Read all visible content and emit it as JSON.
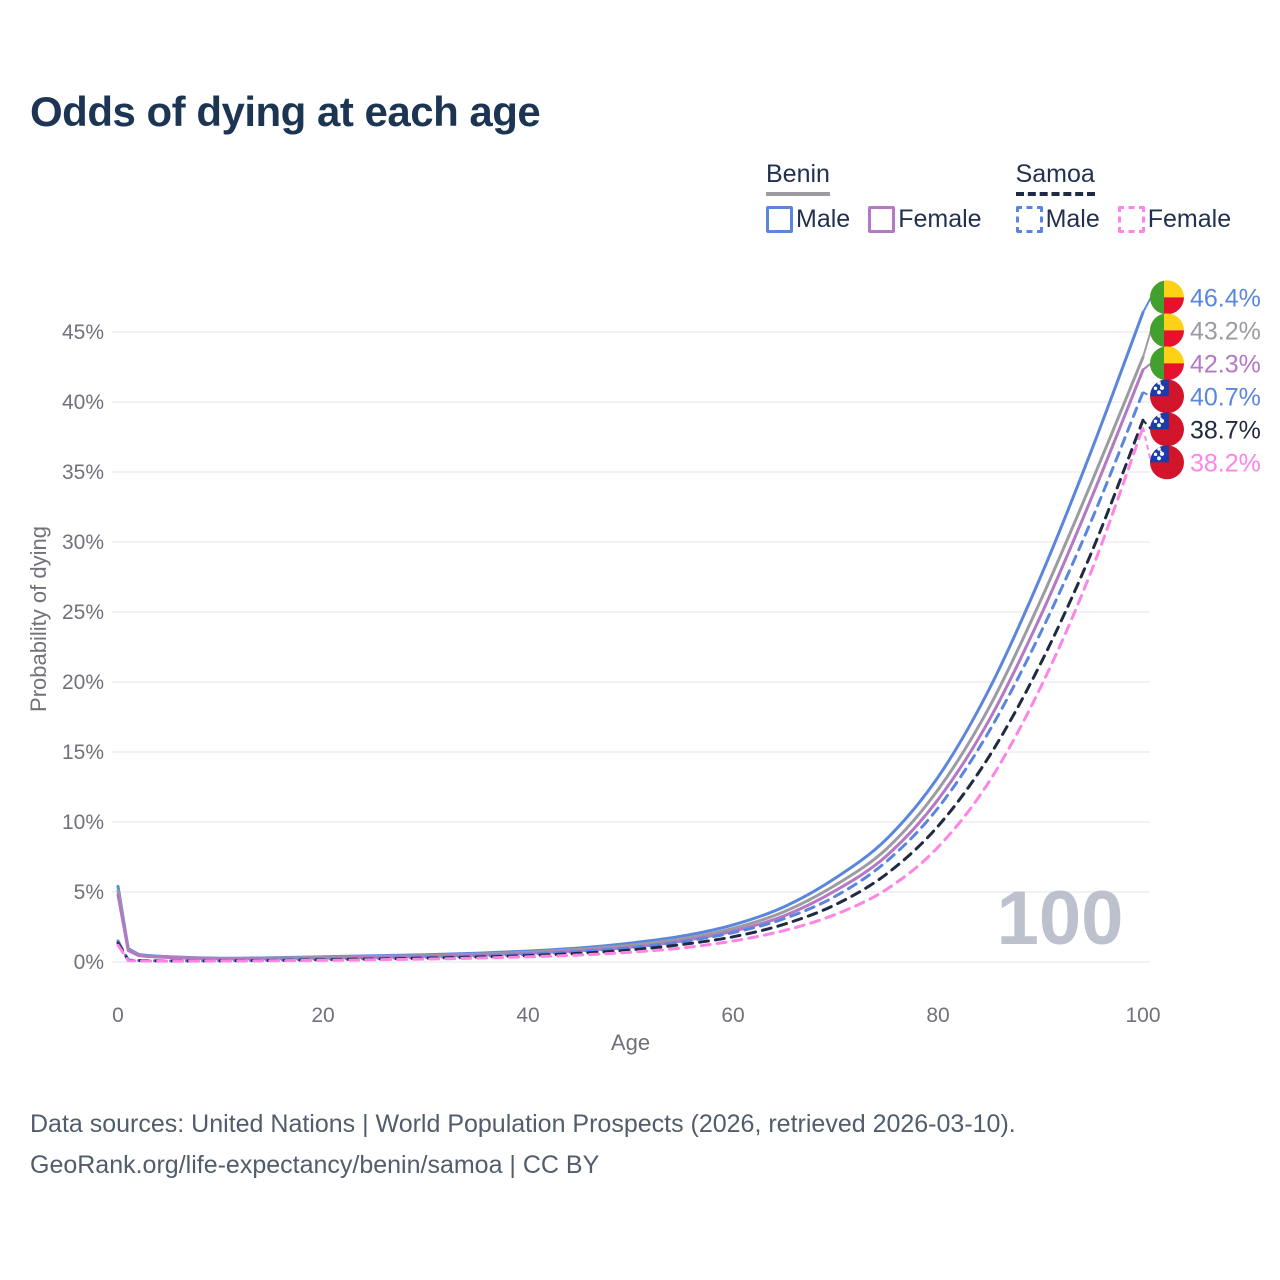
{
  "title": "Odds of dying at each age",
  "legend": {
    "groups": [
      {
        "name": "Benin",
        "line_style": "solid",
        "underline_color": "#9b9ba1",
        "items": [
          {
            "label": "Male",
            "color": "#5b86dd"
          },
          {
            "label": "Female",
            "color": "#b578c2"
          }
        ]
      },
      {
        "name": "Samoa",
        "line_style": "dashed",
        "underline_color": "#1d2b45",
        "items": [
          {
            "label": "Male",
            "color": "#5b86dd"
          },
          {
            "label": "Female",
            "color": "#fc85e6"
          }
        ]
      }
    ]
  },
  "chart_data": {
    "type": "line",
    "title": "Odds of dying at each age",
    "xlabel": "Age",
    "ylabel": "Probability of dying",
    "x_ticks": [
      0,
      20,
      40,
      60,
      80,
      100
    ],
    "y_ticks": [
      0,
      5,
      10,
      15,
      20,
      25,
      30,
      35,
      40,
      45
    ],
    "y_unit": "%",
    "xlim": [
      0,
      100
    ],
    "ylim": [
      0,
      48
    ],
    "grid": "horizontal-only",
    "legend_position": "top-right",
    "watermark": "100",
    "ages": [
      0,
      1,
      2,
      5,
      10,
      15,
      20,
      25,
      30,
      35,
      40,
      45,
      50,
      55,
      60,
      65,
      70,
      75,
      80,
      85,
      90,
      95,
      100
    ],
    "series": [
      {
        "id": "benin-male",
        "name": "Benin Male",
        "country": "Benin",
        "color": "#5b86dd",
        "dash": false,
        "values": [
          5.4,
          0.95,
          0.55,
          0.38,
          0.27,
          0.3,
          0.37,
          0.44,
          0.52,
          0.63,
          0.78,
          1.0,
          1.35,
          1.85,
          2.65,
          3.95,
          6.0,
          8.8,
          13.2,
          19.5,
          27.5,
          36.6,
          46.4
        ]
      },
      {
        "id": "benin-both",
        "name": "Benin (both sexes)",
        "country": "Benin",
        "color": "#9b9ba1",
        "dash": false,
        "values": [
          5.1,
          0.88,
          0.5,
          0.35,
          0.25,
          0.27,
          0.33,
          0.39,
          0.46,
          0.56,
          0.7,
          0.9,
          1.2,
          1.65,
          2.4,
          3.6,
          5.5,
          8.1,
          12.3,
          18.2,
          25.8,
          34.3,
          43.2
        ]
      },
      {
        "id": "benin-female",
        "name": "Benin Female",
        "country": "Benin",
        "color": "#b578c2",
        "dash": false,
        "values": [
          4.8,
          0.82,
          0.46,
          0.32,
          0.23,
          0.24,
          0.28,
          0.33,
          0.4,
          0.49,
          0.62,
          0.8,
          1.05,
          1.5,
          2.2,
          3.3,
          5.1,
          7.6,
          11.6,
          17.3,
          24.7,
          33.2,
          42.3
        ]
      },
      {
        "id": "samoa-male",
        "name": "Samoa Male",
        "country": "Samoa",
        "color": "#5b86dd",
        "dash": true,
        "values": [
          1.5,
          0.14,
          0.11,
          0.08,
          0.09,
          0.13,
          0.19,
          0.25,
          0.32,
          0.41,
          0.55,
          0.74,
          1.02,
          1.45,
          2.1,
          3.1,
          4.7,
          7.2,
          11.0,
          16.5,
          23.5,
          31.6,
          40.7
        ]
      },
      {
        "id": "samoa-both",
        "name": "Samoa (both sexes)",
        "country": "Samoa",
        "color": "#202b42",
        "dash": true,
        "values": [
          1.35,
          0.12,
          0.1,
          0.07,
          0.08,
          0.11,
          0.16,
          0.21,
          0.27,
          0.35,
          0.46,
          0.62,
          0.86,
          1.25,
          1.8,
          2.7,
          4.1,
          6.3,
          9.7,
          14.7,
          21.3,
          29.3,
          38.7
        ]
      },
      {
        "id": "samoa-female",
        "name": "Samoa Female",
        "country": "Samoa",
        "color": "#fc85e6",
        "dash": true,
        "values": [
          1.2,
          0.1,
          0.08,
          0.06,
          0.07,
          0.09,
          0.12,
          0.16,
          0.21,
          0.28,
          0.37,
          0.5,
          0.7,
          1.0,
          1.5,
          2.25,
          3.4,
          5.2,
          8.2,
          12.9,
          19.6,
          28.0,
          38.2
        ]
      }
    ],
    "end_labels": [
      {
        "series": "benin-male",
        "value": "46.4%",
        "color": "#5b86dd",
        "flag": "benin"
      },
      {
        "series": "benin-both",
        "value": "43.2%",
        "color": "#9b9ba1",
        "flag": "benin"
      },
      {
        "series": "benin-female",
        "value": "42.3%",
        "color": "#b578c2",
        "flag": "benin"
      },
      {
        "series": "samoa-male",
        "value": "40.7%",
        "color": "#5b86dd",
        "flag": "samoa"
      },
      {
        "series": "samoa-both",
        "value": "38.7%",
        "color": "#202b42",
        "flag": "samoa"
      },
      {
        "series": "samoa-female",
        "value": "38.2%",
        "color": "#fc85e6",
        "flag": "samoa"
      }
    ],
    "flag_colors": {
      "benin": {
        "green": "#42a12e",
        "yellow": "#FCD116",
        "red": "#E8112D"
      },
      "samoa": {
        "red": "#D3152B",
        "blue": "#1E3CA8",
        "stars": "#ffffff"
      }
    }
  },
  "footer": {
    "line1": "Data sources: United Nations | World Population Prospects (2026, retrieved 2026-03-10).",
    "line2": "GeoRank.org/life-expectancy/benin/samoa | CC BY"
  }
}
